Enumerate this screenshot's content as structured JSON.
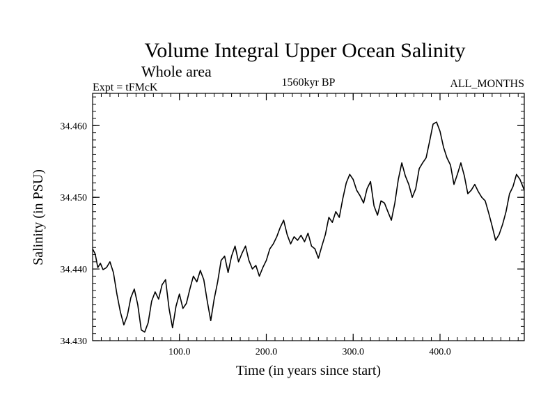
{
  "chart_data": {
    "type": "line",
    "title": "Volume Integral Upper Ocean Salinity",
    "subtitle": "Whole area",
    "left_label": "Expt = tFMcK",
    "center_label": "1560kyr BP",
    "right_label": "ALL_MONTHS",
    "xlabel": "Time (in years since start)",
    "ylabel": "Salinity (in PSU)",
    "xlim": [
      0,
      497
    ],
    "ylim": [
      34.43,
      34.4645
    ],
    "xticks": [
      100,
      200,
      300,
      400
    ],
    "xtick_labels": [
      "100.0",
      "200.0",
      "300.0",
      "400.0"
    ],
    "yticks": [
      34.43,
      34.44,
      34.45,
      34.46
    ],
    "ytick_labels": [
      "34.430",
      "34.440",
      "34.450",
      "34.460"
    ],
    "series": [
      {
        "name": "Salinity",
        "x": [
          0,
          3,
          6,
          9,
          12,
          16,
          20,
          24,
          28,
          32,
          36,
          40,
          44,
          48,
          52,
          56,
          60,
          64,
          68,
          72,
          76,
          80,
          84,
          88,
          92,
          96,
          100,
          104,
          108,
          112,
          116,
          120,
          124,
          128,
          132,
          136,
          140,
          144,
          148,
          152,
          156,
          160,
          164,
          168,
          172,
          176,
          180,
          184,
          188,
          192,
          196,
          200,
          204,
          208,
          212,
          216,
          220,
          224,
          228,
          232,
          236,
          240,
          244,
          248,
          252,
          256,
          260,
          264,
          268,
          272,
          276,
          280,
          284,
          288,
          292,
          296,
          300,
          304,
          308,
          312,
          316,
          320,
          324,
          328,
          332,
          336,
          340,
          344,
          348,
          352,
          356,
          360,
          364,
          368,
          372,
          376,
          380,
          384,
          388,
          392,
          396,
          400,
          404,
          408,
          412,
          416,
          420,
          424,
          428,
          432,
          436,
          440,
          444,
          448,
          452,
          456,
          460,
          464,
          468,
          472,
          476,
          480,
          484,
          488,
          492,
          497
        ],
        "values": [
          34.4428,
          34.4421,
          34.4402,
          34.4408,
          34.4399,
          34.4402,
          34.441,
          34.4395,
          34.4365,
          34.434,
          34.4322,
          34.4335,
          34.436,
          34.4372,
          34.435,
          34.4315,
          34.4312,
          34.4325,
          34.4355,
          34.4368,
          34.4358,
          34.4378,
          34.4385,
          34.4345,
          34.4318,
          34.4348,
          34.4365,
          34.4345,
          34.4352,
          34.4372,
          34.439,
          34.4382,
          34.4398,
          34.4385,
          34.4355,
          34.4328,
          34.4358,
          34.4382,
          34.4412,
          34.4418,
          34.4395,
          34.4418,
          34.4432,
          34.441,
          34.4422,
          34.4432,
          34.4412,
          34.44,
          34.4405,
          34.439,
          34.4402,
          34.4412,
          34.4428,
          34.4435,
          34.4445,
          34.4458,
          34.4468,
          34.4448,
          34.4435,
          34.4445,
          34.444,
          34.4447,
          34.4438,
          34.445,
          34.4432,
          34.4428,
          34.4415,
          34.4432,
          34.4448,
          34.4472,
          34.4465,
          34.448,
          34.4472,
          34.4498,
          34.452,
          34.4532,
          34.4525,
          34.451,
          34.4502,
          34.4492,
          34.4512,
          34.4522,
          34.4488,
          34.4475,
          34.4495,
          34.4492,
          34.448,
          34.4468,
          34.4492,
          34.4525,
          34.4548,
          34.453,
          34.4518,
          34.45,
          34.4512,
          34.454,
          34.4548,
          34.4555,
          34.4578,
          34.4602,
          34.4605,
          34.4592,
          34.457,
          34.4555,
          34.4545,
          34.4518,
          34.4532,
          34.4548,
          34.453,
          34.4505,
          34.451,
          34.4518,
          34.4508,
          34.45,
          34.4495,
          34.4478,
          34.446,
          34.444,
          34.4448,
          34.4462,
          34.448,
          34.4505,
          34.4515,
          34.4532,
          34.4525,
          34.451
        ]
      }
    ]
  }
}
